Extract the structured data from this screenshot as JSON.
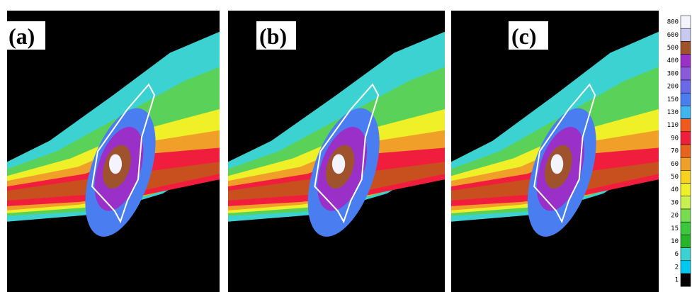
{
  "panels": [
    {
      "label": "(a)"
    },
    {
      "label": "(b)"
    },
    {
      "label": "(c)"
    }
  ],
  "colorbar": {
    "labels": [
      800,
      600,
      500,
      400,
      300,
      200,
      150,
      130,
      110,
      90,
      70,
      60,
      50,
      40,
      30,
      20,
      15,
      10,
      6,
      2,
      1
    ],
    "colors": [
      "#f4f4ff",
      "#c8c8f0",
      "#a0522d",
      "#9b30c8",
      "#8a5ad8",
      "#6a6ae8",
      "#4a7ef0",
      "#40b4f0",
      "#f05a1e",
      "#f01e3c",
      "#e8641e",
      "#f0a028",
      "#f8d21e",
      "#f0f028",
      "#c8f050",
      "#78dc50",
      "#3cc83c",
      "#28b428",
      "#3cd2d2",
      "#00c8f0",
      "#000000"
    ]
  }
}
